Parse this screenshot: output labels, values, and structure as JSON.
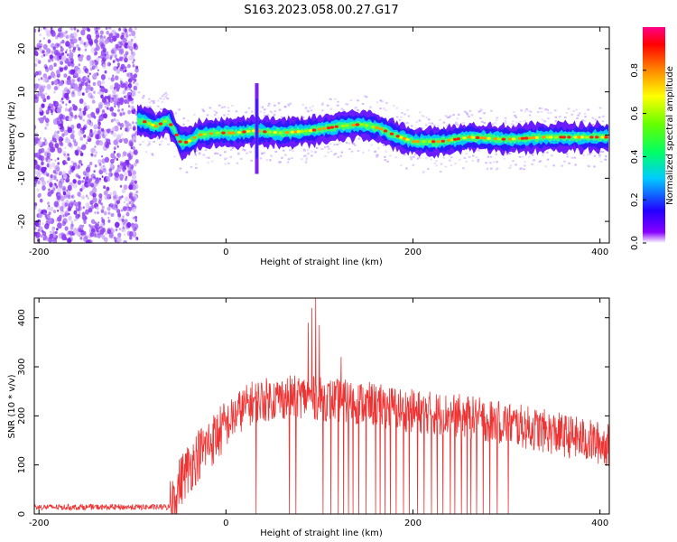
{
  "title": "S163.2023.058.00.27.G17",
  "chart_data": [
    {
      "type": "heatmap",
      "xlabel": "Height of straight line (km)",
      "ylabel": "Frequency (Hz)",
      "xlim": [
        -205,
        410
      ],
      "ylim": [
        -25,
        25
      ],
      "xticks": [
        -200,
        0,
        200,
        400
      ],
      "yticks": [
        -20,
        -10,
        0,
        10,
        20
      ],
      "colorbar": {
        "label": "Normalized spectral amplitude",
        "range": [
          0,
          1
        ],
        "ticks": [
          "0.0",
          "0.2",
          "0.4",
          "0.6",
          "0.8"
        ]
      },
      "noise_region_x": [
        -205,
        -95
      ],
      "ridge": [
        {
          "x": -95,
          "y": 3.5
        },
        {
          "x": -85,
          "y": 3.0
        },
        {
          "x": -75,
          "y": 2.0
        },
        {
          "x": -62,
          "y": 3.5
        },
        {
          "x": -55,
          "y": 1.0
        },
        {
          "x": -48,
          "y": -2.0
        },
        {
          "x": -40,
          "y": -1.5
        },
        {
          "x": -30,
          "y": 0.0
        },
        {
          "x": -10,
          "y": 0.5
        },
        {
          "x": 10,
          "y": 0.5
        },
        {
          "x": 30,
          "y": 1.0
        },
        {
          "x": 40,
          "y": 0.8
        },
        {
          "x": 60,
          "y": 0.5
        },
        {
          "x": 90,
          "y": 1.0
        },
        {
          "x": 120,
          "y": 2.0
        },
        {
          "x": 145,
          "y": 2.5
        },
        {
          "x": 165,
          "y": 1.5
        },
        {
          "x": 180,
          "y": 0.0
        },
        {
          "x": 200,
          "y": -1.5
        },
        {
          "x": 230,
          "y": -1.5
        },
        {
          "x": 260,
          "y": -0.5
        },
        {
          "x": 300,
          "y": -1.0
        },
        {
          "x": 340,
          "y": -0.5
        },
        {
          "x": 380,
          "y": -0.5
        },
        {
          "x": 410,
          "y": -0.5
        }
      ],
      "spike": {
        "x": 33,
        "y_range": [
          -9,
          12
        ]
      }
    },
    {
      "type": "line",
      "xlabel": "Height of straight line (km)",
      "ylabel": "SNR (10 * v/v)",
      "xlim": [
        -205,
        410
      ],
      "ylim": [
        0,
        440
      ],
      "xticks": [
        -200,
        0,
        200,
        400
      ],
      "yticks": [
        0,
        100,
        200,
        300,
        400
      ],
      "color": "#ee3333",
      "envelope": [
        {
          "x": -205,
          "y": 10
        },
        {
          "x": -60,
          "y": 10
        },
        {
          "x": -55,
          "y": 40
        },
        {
          "x": -45,
          "y": 80
        },
        {
          "x": -30,
          "y": 120
        },
        {
          "x": -15,
          "y": 150
        },
        {
          "x": 0,
          "y": 180
        },
        {
          "x": 15,
          "y": 210
        },
        {
          "x": 30,
          "y": 230
        },
        {
          "x": 50,
          "y": 235
        },
        {
          "x": 80,
          "y": 240
        },
        {
          "x": 100,
          "y": 235
        },
        {
          "x": 150,
          "y": 225
        },
        {
          "x": 200,
          "y": 210
        },
        {
          "x": 250,
          "y": 200
        },
        {
          "x": 300,
          "y": 185
        },
        {
          "x": 350,
          "y": 165
        },
        {
          "x": 410,
          "y": 140
        }
      ],
      "dropouts_x": [
        32,
        68,
        75,
        96,
        100,
        104,
        112,
        120,
        126,
        131,
        136,
        142,
        150,
        160,
        165,
        170,
        176,
        182,
        190,
        196,
        205,
        212,
        220,
        226,
        232,
        240,
        245,
        252,
        258,
        262,
        268,
        275,
        282,
        290,
        302
      ],
      "peaks": [
        {
          "x": 88,
          "y": 390
        },
        {
          "x": 92,
          "y": 420
        },
        {
          "x": 96,
          "y": 440
        },
        {
          "x": 100,
          "y": 385
        },
        {
          "x": 123,
          "y": 320
        }
      ]
    }
  ]
}
